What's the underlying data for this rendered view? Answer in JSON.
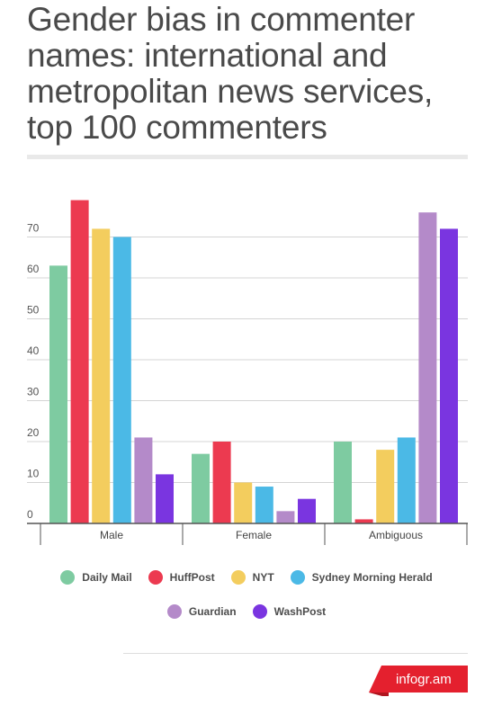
{
  "title": "Gender bias in commenter names: international and metropolitan news services, top 100 commenters",
  "brand": "infogr.am",
  "colors": {
    "Daily Mail": "#7ecba1",
    "HuffPost": "#ec3a50",
    "NYT": "#f3cd5e",
    "Sydney Morning Herald": "#4bb9e6",
    "Guardian": "#b48ac9",
    "WashPost": "#7a35e0",
    "brand": "#e4202e"
  },
  "chart_data": {
    "type": "bar",
    "title": "Gender bias in commenter names: international and metropolitan news services, top 100 commenters",
    "xlabel": "",
    "ylabel": "",
    "categories": [
      "Male",
      "Female",
      "Ambiguous"
    ],
    "yticks": [
      "0",
      "10",
      "20",
      "30",
      "40",
      "50",
      "60",
      "70"
    ],
    "ylim": [
      0,
      80
    ],
    "grid": true,
    "legend_position": "bottom",
    "series": [
      {
        "name": "Daily Mail",
        "values": [
          63,
          17,
          20
        ]
      },
      {
        "name": "HuffPost",
        "values": [
          79,
          20,
          1
        ]
      },
      {
        "name": "NYT",
        "values": [
          72,
          10,
          18
        ]
      },
      {
        "name": "Sydney Morning Herald",
        "values": [
          70,
          9,
          21
        ]
      },
      {
        "name": "Guardian",
        "values": [
          21,
          3,
          76
        ]
      },
      {
        "name": "WashPost",
        "values": [
          12,
          6,
          72
        ]
      }
    ]
  }
}
